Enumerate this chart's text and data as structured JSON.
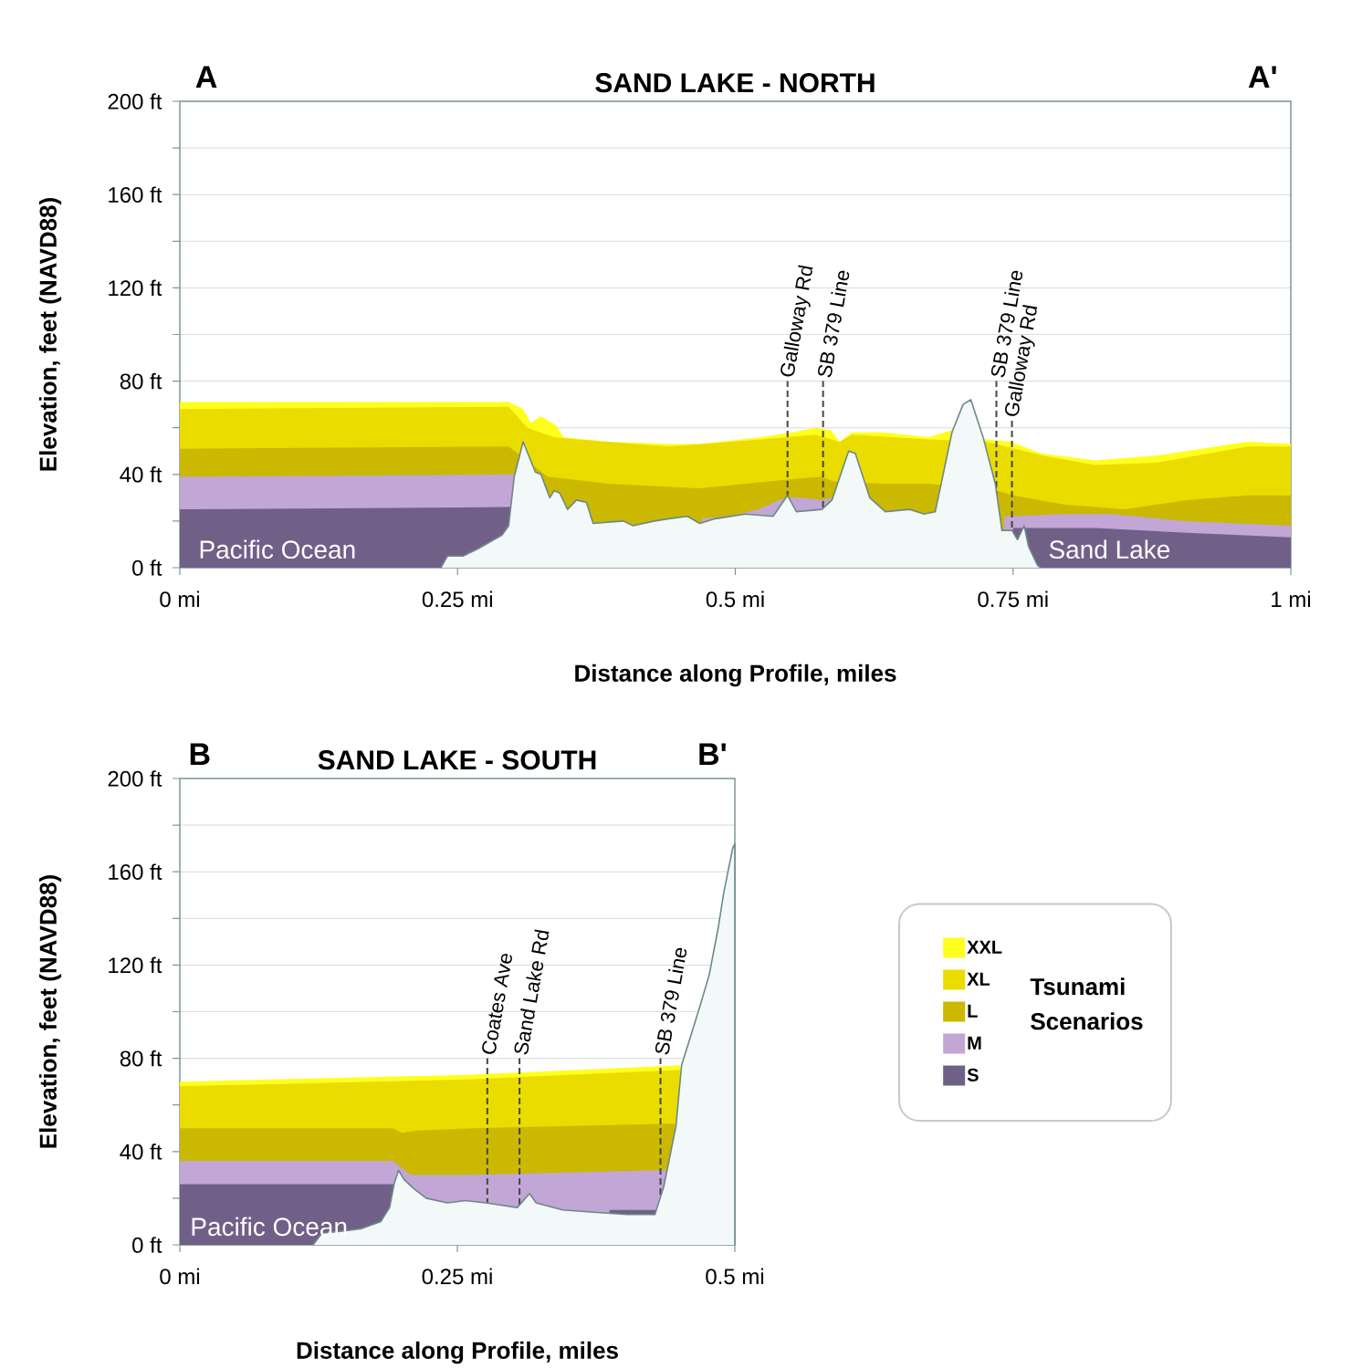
{
  "chart_data": [
    {
      "type": "area",
      "title": "SAND LAKE - NORTH",
      "xlabel": "Distance along Profile, miles",
      "ylabel": "Elevation, feet (NAVD88)",
      "annotations": [
        "A",
        "A'",
        "Pacific Ocean",
        "Sand Lake"
      ],
      "xlim": [
        0,
        1
      ],
      "ylim": [
        0,
        200
      ],
      "xticks": [
        {
          "value": 0,
          "label": "0 mi"
        },
        {
          "value": 0.25,
          "label": "0.25 mi"
        },
        {
          "value": 0.5,
          "label": "0.5 mi"
        },
        {
          "value": 0.75,
          "label": "0.75 mi"
        },
        {
          "value": 1,
          "label": "1 mi"
        }
      ],
      "yticks": [
        {
          "value": 0,
          "label": "0 ft"
        },
        {
          "value": 20,
          "label": null
        },
        {
          "value": 40,
          "label": "40 ft"
        },
        {
          "value": 60,
          "label": null
        },
        {
          "value": 80,
          "label": "80 ft"
        },
        {
          "value": 100,
          "label": null
        },
        {
          "value": 120,
          "label": "120 ft"
        },
        {
          "value": 140,
          "label": null
        },
        {
          "value": 160,
          "label": "160 ft"
        },
        {
          "value": 180,
          "label": null
        },
        {
          "value": 200,
          "label": "200 ft"
        }
      ],
      "grid": "y",
      "legend": false,
      "ref_lines": [
        {
          "axis": "x",
          "value": 0.547,
          "label": "Galloway Rd",
          "line_style": "dashed"
        },
        {
          "axis": "x",
          "value": 0.579,
          "label": "SB 379 Line",
          "line_style": "dashed"
        },
        {
          "axis": "x",
          "value": 0.735,
          "label": "SB 379 Line",
          "line_style": "dashed"
        },
        {
          "axis": "x",
          "value": 0.749,
          "label": "Galloway Rd",
          "line_style": "dashed"
        }
      ],
      "series": [
        {
          "color": "#ffff1e",
          "x": [
            0,
            0.296,
            0.309,
            0.316,
            0.325,
            0.339,
            0.345,
            0.386,
            0.44,
            0.468,
            0.523,
            0.551,
            0.572,
            0.586,
            0.594,
            0.605,
            0.633,
            0.674,
            0.695,
            0.726,
            0.748,
            0.775,
            0.824,
            0.879,
            0.961,
            1
          ],
          "values": [
            71,
            71,
            68,
            62,
            65,
            61,
            56,
            54,
            53,
            53,
            56,
            58,
            60,
            59,
            54,
            58,
            58,
            56,
            59,
            55,
            54,
            49,
            46,
            48,
            54,
            53
          ]
        },
        {
          "color": "#ebdc00",
          "x": [
            0,
            0.296,
            0.313,
            0.337,
            0.358,
            0.44,
            0.523,
            0.572,
            0.594,
            0.605,
            0.674,
            0.726,
            0.777,
            0.824,
            0.879,
            0.961,
            1
          ],
          "values": [
            68,
            69,
            60,
            56,
            55,
            52,
            55,
            57,
            54,
            57,
            55,
            54,
            48,
            44,
            45,
            52,
            52
          ]
        },
        {
          "color": "#cbb800",
          "x": [
            0,
            0.296,
            0.331,
            0.386,
            0.468,
            0.551,
            0.578,
            0.588,
            0.633,
            0.674,
            0.736,
            0.75,
            0.797,
            0.851,
            0.906,
            0.961,
            1
          ],
          "values": [
            51,
            52,
            39,
            36,
            34,
            38,
            39,
            37,
            36,
            36,
            33,
            31,
            27,
            25,
            29,
            31,
            31
          ]
        },
        {
          "color": "#c2a6d6",
          "x": [
            0,
            0.301,
            0.4,
            0.47,
            0.494,
            0.521,
            0.539,
            0.547,
            0.559,
            0.578,
            0.587,
            0.65,
            0.742,
            0.797,
            0.838,
            0.906,
            1
          ],
          "values": [
            39,
            40,
            null,
            21,
            22,
            25,
            29,
            30,
            30,
            29,
            30,
            null,
            22,
            23,
            23,
            20,
            18
          ]
        },
        {
          "color": "#706088",
          "x": [
            0,
            0.298,
            0.5,
            0.75,
            0.824,
            0.906,
            1
          ],
          "values": [
            25,
            26,
            null,
            17,
            17,
            15,
            13
          ]
        },
        {
          "color": "#f3f9f9",
          "x": [
            0.235,
            0.241,
            0.255,
            0.268,
            0.29,
            0.296,
            0.301,
            0.309,
            0.32,
            0.325,
            0.333,
            0.337,
            0.342,
            0.349,
            0.357,
            0.366,
            0.372,
            0.399,
            0.408,
            0.427,
            0.44,
            0.457,
            0.468,
            0.482,
            0.509,
            0.534,
            0.547,
            0.555,
            0.578,
            0.587,
            0.602,
            0.608,
            0.621,
            0.635,
            0.657,
            0.67,
            0.68,
            0.695,
            0.705,
            0.712,
            0.723,
            0.734,
            0.74,
            0.749,
            0.754,
            0.76,
            0.764,
            0.772,
            0.775
          ],
          "values": [
            0,
            5,
            5,
            8,
            14,
            18,
            39,
            54,
            41,
            40,
            30,
            33,
            32,
            25,
            29,
            28,
            19,
            20,
            18,
            20,
            21,
            22,
            19,
            21,
            23,
            22,
            31,
            24,
            25,
            29,
            50,
            49,
            30,
            24,
            25,
            23,
            24,
            58,
            70,
            72,
            56,
            36,
            16,
            16,
            12,
            18,
            9,
            1,
            0
          ]
        }
      ]
    },
    {
      "type": "area",
      "title": "SAND LAKE - SOUTH",
      "xlabel": "Distance along Profile, miles",
      "ylabel": "Elevation, feet (NAVD88)",
      "annotations": [
        "B",
        "B'",
        "Pacific Ocean"
      ],
      "xlim": [
        0,
        0.5
      ],
      "ylim": [
        0,
        200
      ],
      "xticks": [
        {
          "value": 0,
          "label": "0 mi"
        },
        {
          "value": 0.25,
          "label": "0.25 mi"
        },
        {
          "value": 0.5,
          "label": "0.5 mi"
        }
      ],
      "yticks": [
        {
          "value": 0,
          "label": "0 ft"
        },
        {
          "value": 20,
          "label": null
        },
        {
          "value": 40,
          "label": "40 ft"
        },
        {
          "value": 60,
          "label": null
        },
        {
          "value": 80,
          "label": "80 ft"
        },
        {
          "value": 100,
          "label": null
        },
        {
          "value": 120,
          "label": "120 ft"
        },
        {
          "value": 140,
          "label": null
        },
        {
          "value": 160,
          "label": "160 ft"
        },
        {
          "value": 180,
          "label": null
        },
        {
          "value": 200,
          "label": "200 ft"
        }
      ],
      "grid": "y",
      "legend": "right",
      "legend_title": "Tsunami Scenarios",
      "ref_lines": [
        {
          "axis": "x",
          "value": 0.277,
          "label": "Coates Ave",
          "line_style": "dashed"
        },
        {
          "axis": "x",
          "value": 0.306,
          "label": "Sand Lake Rd",
          "line_style": "dashed"
        },
        {
          "axis": "x",
          "value": 0.433,
          "label": "SB 379 Line",
          "line_style": "dashed"
        }
      ],
      "series": [
        {
          "name": "XXL",
          "color": "#ffff1e",
          "x": [
            0,
            0.263,
            0.451
          ],
          "values": [
            70,
            73,
            77
          ]
        },
        {
          "name": "XL",
          "color": "#ebdc00",
          "x": [
            0,
            0.263,
            0.451
          ],
          "values": [
            68,
            71,
            75
          ]
        },
        {
          "name": "L",
          "color": "#cbb800",
          "x": [
            0,
            0.192,
            0.2,
            0.214,
            0.263,
            0.44,
            0.446
          ],
          "values": [
            50,
            50,
            48,
            49,
            50,
            52,
            52
          ]
        },
        {
          "name": "M",
          "color": "#c2a6d6",
          "x": [
            0,
            0.192,
            0.2,
            0.208,
            0.263,
            0.43,
            0.438
          ],
          "values": [
            36,
            36,
            33,
            30,
            30,
            32,
            32
          ]
        },
        {
          "name": "S",
          "color": "#706088",
          "x": [
            0,
            0.193,
            0.3,
            0.387,
            0.43
          ],
          "values": [
            26,
            26,
            null,
            15,
            15
          ]
        },
        {
          "color": "#f3f9f9",
          "x": [
            0.12,
            0.128,
            0.148,
            0.164,
            0.181,
            0.189,
            0.193,
            0.197,
            0.202,
            0.211,
            0.222,
            0.241,
            0.257,
            0.276,
            0.304,
            0.315,
            0.321,
            0.345,
            0.373,
            0.403,
            0.428,
            0.436,
            0.447,
            0.452,
            0.469,
            0.477,
            0.485,
            0.49,
            0.498,
            0.5
          ],
          "values": [
            0,
            5,
            6,
            7,
            10,
            16,
            26,
            32,
            28,
            24,
            20,
            18,
            19,
            18,
            16,
            22,
            18,
            15,
            14,
            13,
            13,
            25,
            51,
            77,
            103,
            116,
            136,
            151,
            170,
            172
          ]
        }
      ]
    }
  ]
}
